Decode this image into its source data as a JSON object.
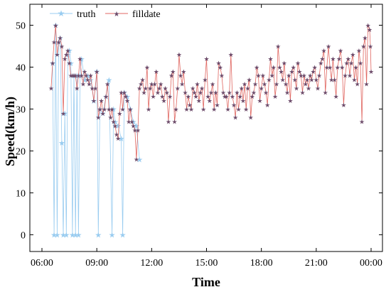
{
  "chart_data": {
    "type": "line",
    "title": "",
    "xlabel": "Time",
    "ylabel": "Speed(km/h)",
    "xlim": [
      "06:00",
      "00:00"
    ],
    "ylim": [
      -4,
      55
    ],
    "x_ticks": [
      "06:00",
      "09:00",
      "12:00",
      "15:00",
      "18:00",
      "21:00",
      "00:00"
    ],
    "y_ticks": [
      0,
      10,
      20,
      30,
      40,
      50
    ],
    "legend_position": "top-left",
    "series": [
      {
        "name": "truth",
        "color": "#99ccf0",
        "marker": "star",
        "points": [
          [
            "06:35",
            41
          ],
          [
            "06:40",
            0
          ],
          [
            "06:45",
            50
          ],
          [
            "06:50",
            0
          ],
          [
            "06:55",
            46
          ],
          [
            "07:00",
            47
          ],
          [
            "07:05",
            22
          ],
          [
            "07:10",
            0
          ],
          [
            "07:15",
            29
          ],
          [
            "07:20",
            0
          ],
          [
            "07:25",
            43
          ],
          [
            "07:30",
            44
          ],
          [
            "07:35",
            41
          ],
          [
            "07:40",
            0
          ],
          [
            "07:45",
            38
          ],
          [
            "07:50",
            0
          ],
          [
            "07:55",
            38
          ],
          [
            "08:00",
            0
          ],
          [
            "08:05",
            38
          ],
          [
            "08:10",
            42
          ],
          [
            "08:20",
            37
          ],
          [
            "08:30",
            38
          ],
          [
            "08:40",
            37
          ],
          [
            "08:50",
            32
          ],
          [
            "09:00",
            39
          ],
          [
            "09:05",
            0
          ],
          [
            "09:10",
            30
          ],
          [
            "09:20",
            29
          ],
          [
            "09:30",
            33
          ],
          [
            "09:40",
            37
          ],
          [
            "09:50",
            0
          ],
          [
            "09:55",
            30
          ],
          [
            "10:00",
            27
          ],
          [
            "10:10",
            26
          ],
          [
            "10:20",
            23
          ],
          [
            "10:25",
            0
          ],
          [
            "10:30",
            34
          ],
          [
            "10:40",
            33
          ],
          [
            "10:50",
            30
          ],
          [
            "11:00",
            27
          ],
          [
            "11:10",
            26
          ],
          [
            "11:20",
            18
          ]
        ]
      },
      {
        "name": "filldate",
        "color": "#e06660",
        "marker": "star",
        "points": [
          [
            "06:30",
            35
          ],
          [
            "06:35",
            41
          ],
          [
            "06:40",
            46
          ],
          [
            "06:45",
            50
          ],
          [
            "06:50",
            43
          ],
          [
            "06:55",
            46
          ],
          [
            "07:00",
            47
          ],
          [
            "07:05",
            45
          ],
          [
            "07:10",
            29
          ],
          [
            "07:15",
            42
          ],
          [
            "07:20",
            43
          ],
          [
            "07:25",
            44
          ],
          [
            "07:30",
            41
          ],
          [
            "07:35",
            38
          ],
          [
            "07:40",
            38
          ],
          [
            "07:45",
            38
          ],
          [
            "07:50",
            38
          ],
          [
            "07:55",
            35
          ],
          [
            "08:00",
            38
          ],
          [
            "08:05",
            42
          ],
          [
            "08:10",
            38
          ],
          [
            "08:15",
            36
          ],
          [
            "08:20",
            39
          ],
          [
            "08:25",
            38
          ],
          [
            "08:30",
            37
          ],
          [
            "08:35",
            36
          ],
          [
            "08:40",
            38
          ],
          [
            "08:45",
            35
          ],
          [
            "08:50",
            32
          ],
          [
            "08:55",
            35
          ],
          [
            "09:00",
            39
          ],
          [
            "09:05",
            28
          ],
          [
            "09:10",
            30
          ],
          [
            "09:15",
            32
          ],
          [
            "09:20",
            29
          ],
          [
            "09:25",
            30
          ],
          [
            "09:30",
            33
          ],
          [
            "09:35",
            36
          ],
          [
            "09:40",
            30
          ],
          [
            "09:45",
            28
          ],
          [
            "09:50",
            30
          ],
          [
            "09:55",
            27
          ],
          [
            "10:00",
            26
          ],
          [
            "10:05",
            24
          ],
          [
            "10:10",
            23
          ],
          [
            "10:15",
            29
          ],
          [
            "10:20",
            34
          ],
          [
            "10:25",
            30
          ],
          [
            "10:30",
            34
          ],
          [
            "10:35",
            33
          ],
          [
            "10:40",
            32
          ],
          [
            "10:45",
            27
          ],
          [
            "10:50",
            30
          ],
          [
            "10:55",
            27
          ],
          [
            "11:00",
            26
          ],
          [
            "11:05",
            25
          ],
          [
            "11:10",
            18
          ],
          [
            "11:15",
            25
          ],
          [
            "11:20",
            35
          ],
          [
            "11:25",
            36
          ],
          [
            "11:30",
            37
          ],
          [
            "11:35",
            34
          ],
          [
            "11:40",
            35
          ],
          [
            "11:45",
            40
          ],
          [
            "11:50",
            30
          ],
          [
            "11:55",
            35
          ],
          [
            "12:00",
            36
          ],
          [
            "12:05",
            33
          ],
          [
            "12:10",
            36
          ],
          [
            "12:15",
            39
          ],
          [
            "12:20",
            34
          ],
          [
            "12:25",
            35
          ],
          [
            "12:30",
            36
          ],
          [
            "12:35",
            33
          ],
          [
            "12:40",
            32
          ],
          [
            "12:45",
            35
          ],
          [
            "12:50",
            34
          ],
          [
            "12:55",
            27
          ],
          [
            "13:00",
            33
          ],
          [
            "13:05",
            38
          ],
          [
            "13:10",
            39
          ],
          [
            "13:15",
            27
          ],
          [
            "13:20",
            30
          ],
          [
            "13:25",
            35
          ],
          [
            "13:30",
            43
          ],
          [
            "13:35",
            38
          ],
          [
            "13:40",
            36
          ],
          [
            "13:45",
            39
          ],
          [
            "13:50",
            34
          ],
          [
            "13:55",
            30
          ],
          [
            "14:00",
            33
          ],
          [
            "14:05",
            31
          ],
          [
            "14:10",
            30
          ],
          [
            "14:15",
            35
          ],
          [
            "14:20",
            34
          ],
          [
            "14:25",
            33
          ],
          [
            "14:30",
            36
          ],
          [
            "14:35",
            32
          ],
          [
            "14:40",
            34
          ],
          [
            "14:45",
            35
          ],
          [
            "14:50",
            30
          ],
          [
            "14:55",
            37
          ],
          [
            "15:00",
            42
          ],
          [
            "15:05",
            33
          ],
          [
            "15:10",
            32
          ],
          [
            "15:15",
            34
          ],
          [
            "15:20",
            36
          ],
          [
            "15:25",
            30
          ],
          [
            "15:30",
            34
          ],
          [
            "15:35",
            31
          ],
          [
            "15:40",
            41
          ],
          [
            "15:45",
            40
          ],
          [
            "15:50",
            38
          ],
          [
            "15:55",
            34
          ],
          [
            "16:00",
            33
          ],
          [
            "16:05",
            33
          ],
          [
            "16:10",
            30
          ],
          [
            "16:15",
            34
          ],
          [
            "16:20",
            43
          ],
          [
            "16:25",
            33
          ],
          [
            "16:30",
            31
          ],
          [
            "16:35",
            28
          ],
          [
            "16:40",
            34
          ],
          [
            "16:45",
            30
          ],
          [
            "16:50",
            33
          ],
          [
            "16:55",
            35
          ],
          [
            "17:00",
            32
          ],
          [
            "17:05",
            36
          ],
          [
            "17:10",
            30
          ],
          [
            "17:15",
            35
          ],
          [
            "17:20",
            37
          ],
          [
            "17:25",
            28
          ],
          [
            "17:30",
            33
          ],
          [
            "17:35",
            34
          ],
          [
            "17:40",
            36
          ],
          [
            "17:45",
            40
          ],
          [
            "17:50",
            38
          ],
          [
            "17:55",
            32
          ],
          [
            "18:00",
            35
          ],
          [
            "18:05",
            38
          ],
          [
            "18:10",
            36
          ],
          [
            "18:15",
            34
          ],
          [
            "18:20",
            31
          ],
          [
            "18:25",
            37
          ],
          [
            "18:30",
            42
          ],
          [
            "18:35",
            38
          ],
          [
            "18:40",
            40
          ],
          [
            "18:45",
            33
          ],
          [
            "18:50",
            36
          ],
          [
            "18:55",
            45
          ],
          [
            "19:00",
            40
          ],
          [
            "19:05",
            39
          ],
          [
            "19:10",
            37
          ],
          [
            "19:15",
            41
          ],
          [
            "19:20",
            36
          ],
          [
            "19:25",
            34
          ],
          [
            "19:30",
            38
          ],
          [
            "19:35",
            32
          ],
          [
            "19:40",
            39
          ],
          [
            "19:45",
            40
          ],
          [
            "19:50",
            37
          ],
          [
            "19:55",
            35
          ],
          [
            "20:00",
            41
          ],
          [
            "20:05",
            39
          ],
          [
            "20:10",
            38
          ],
          [
            "20:15",
            34
          ],
          [
            "20:20",
            38
          ],
          [
            "20:25",
            36
          ],
          [
            "20:30",
            37
          ],
          [
            "20:35",
            35
          ],
          [
            "20:40",
            38
          ],
          [
            "20:45",
            37
          ],
          [
            "20:50",
            39
          ],
          [
            "20:55",
            40
          ],
          [
            "21:00",
            37
          ],
          [
            "21:05",
            35
          ],
          [
            "21:10",
            38
          ],
          [
            "21:15",
            41
          ],
          [
            "21:20",
            42
          ],
          [
            "21:25",
            44
          ],
          [
            "21:30",
            34
          ],
          [
            "21:35",
            40
          ],
          [
            "21:40",
            45
          ],
          [
            "21:45",
            40
          ],
          [
            "21:50",
            37
          ],
          [
            "21:55",
            42
          ],
          [
            "22:00",
            37
          ],
          [
            "22:05",
            33
          ],
          [
            "22:10",
            40
          ],
          [
            "22:15",
            42
          ],
          [
            "22:20",
            44
          ],
          [
            "22:25",
            40
          ],
          [
            "22:30",
            31
          ],
          [
            "22:35",
            38
          ],
          [
            "22:40",
            41
          ],
          [
            "22:45",
            42
          ],
          [
            "22:50",
            38
          ],
          [
            "22:55",
            41
          ],
          [
            "23:00",
            43
          ],
          [
            "23:05",
            37
          ],
          [
            "23:10",
            40
          ],
          [
            "23:15",
            36
          ],
          [
            "23:20",
            44
          ],
          [
            "23:25",
            41
          ],
          [
            "23:30",
            27
          ],
          [
            "23:35",
            45
          ],
          [
            "23:40",
            47
          ],
          [
            "23:45",
            36
          ],
          [
            "23:50",
            50
          ],
          [
            "23:55",
            49
          ],
          [
            "23:58",
            45
          ],
          [
            "00:00",
            39
          ]
        ]
      }
    ]
  }
}
